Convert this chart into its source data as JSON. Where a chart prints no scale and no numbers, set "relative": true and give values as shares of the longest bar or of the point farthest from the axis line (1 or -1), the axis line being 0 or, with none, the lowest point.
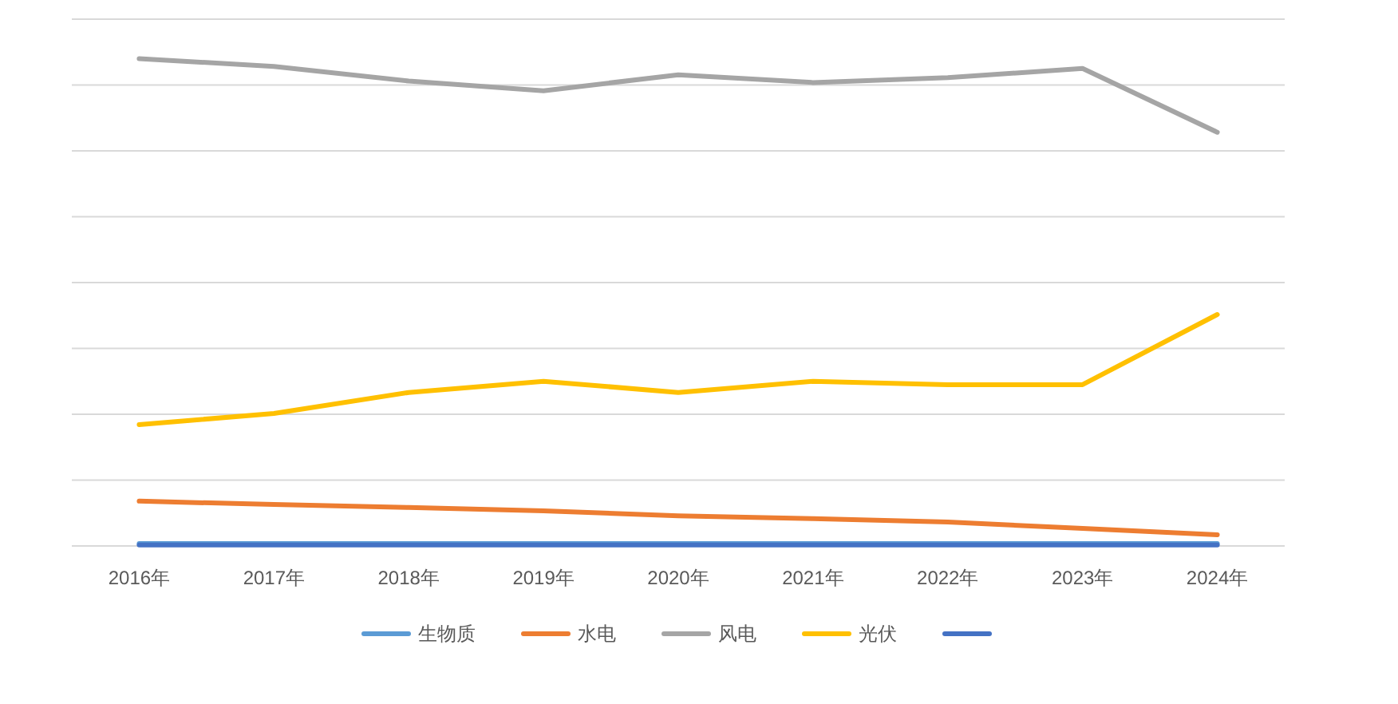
{
  "chart_data": {
    "type": "line",
    "relative": true,
    "grid": "y",
    "legend": "bottom",
    "marker": "none",
    "line_style": "solid",
    "categories": [
      "2016年",
      "2017年",
      "2018年",
      "2019年",
      "2020年",
      "2021年",
      "2022年",
      "2023年",
      "2024年"
    ],
    "series": [
      {
        "name": "生物质",
        "color": "#5b9bd5",
        "values": [
          0.005,
          0.005,
          0.005,
          0.005,
          0.005,
          0.005,
          0.005,
          0.005,
          0.005
        ]
      },
      {
        "name": "水电",
        "color": "#ed7d31",
        "values": [
          0.092,
          0.085,
          0.079,
          0.072,
          0.062,
          0.056,
          0.049,
          0.036,
          0.023
        ]
      },
      {
        "name": "风电",
        "color": "#a5a5a5",
        "values": [
          1,
          0.984,
          0.954,
          0.934,
          0.967,
          0.951,
          0.961,
          0.98,
          0.849
        ]
      },
      {
        "name": "光伏",
        "color": "#ffc000",
        "values": [
          0.249,
          0.272,
          0.315,
          0.338,
          0.315,
          0.338,
          0.331,
          0.331,
          0.475
        ]
      },
      {
        "color": "#4472c4",
        "values": [
          0.002,
          0.002,
          0.002,
          0.002,
          0.002,
          0.002,
          0.002,
          0.002,
          0.002
        ]
      }
    ]
  }
}
